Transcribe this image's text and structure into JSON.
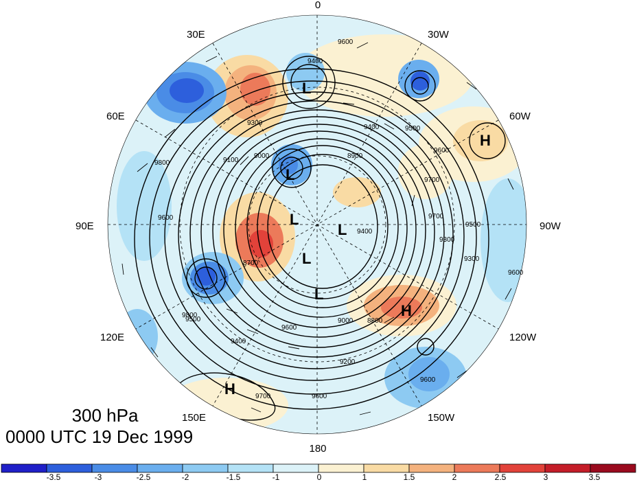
{
  "title": {
    "level": "300 hPa",
    "time": "0000 UTC 19 Dec 1999"
  },
  "longitude_labels": [
    "0",
    "30W",
    "60W",
    "90W",
    "120W",
    "150W",
    "180",
    "150E",
    "120E",
    "90E",
    "60E",
    "30E"
  ],
  "colorbar": {
    "ticks": [
      "-3.5",
      "-3",
      "-2.5",
      "-2",
      "-1.5",
      "-1",
      "0",
      "1",
      "1.5",
      "2",
      "2.5",
      "3",
      "3.5"
    ],
    "colors": [
      "#1f1fc8",
      "#2d5fdc",
      "#4a8ce6",
      "#6aaeee",
      "#8dcaf2",
      "#b4e2f6",
      "#dcf2f8",
      "#fbf1d2",
      "#f9dba4",
      "#f4b27e",
      "#ec7a5a",
      "#e2423a",
      "#c41d28",
      "#9a0a1e"
    ]
  },
  "contour_labels": [
    "9600",
    "9400",
    "9500",
    "9400",
    "9600",
    "9300",
    "9100",
    "9000",
    "8900",
    "9800",
    "9700",
    "9500",
    "9600",
    "9700",
    "9300",
    "9400",
    "8700",
    "9800",
    "9500",
    "9400",
    "9600",
    "9200",
    "9000",
    "8800",
    "9600",
    "9700",
    "9600",
    "9300",
    "9600"
  ],
  "pressure_centers": [
    {
      "symbol": "L",
      "lon_lat": "north-atlantic-low"
    },
    {
      "symbol": "L",
      "lon_lat": "scandinavia-low"
    },
    {
      "symbol": "L",
      "lon_lat": "siberia-low-1"
    },
    {
      "symbol": "L",
      "lon_lat": "arctic-low"
    },
    {
      "symbol": "L",
      "lon_lat": "siberia-low-2"
    },
    {
      "symbol": "L",
      "lon_lat": "east-siberia-low"
    },
    {
      "symbol": "H",
      "lon_lat": "west-atlantic-high"
    },
    {
      "symbol": "H",
      "lon_lat": "north-america-high"
    },
    {
      "symbol": "H",
      "lon_lat": "pacific-high"
    }
  ]
}
